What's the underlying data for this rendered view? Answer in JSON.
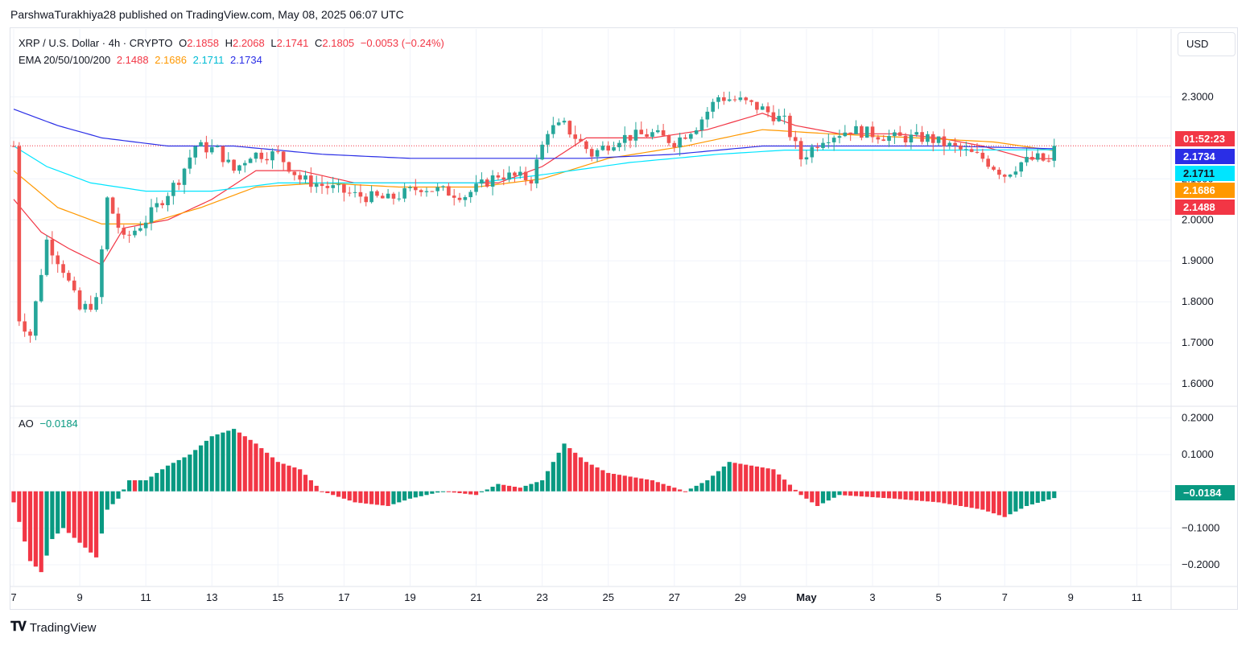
{
  "publisher": "ParshwaTurakhiya28 published on TradingView.com, May 08, 2025 06:07 UTC",
  "symbol": {
    "name": "XRP / U.S. Dollar · 4h · CRYPTO",
    "o_label": "O",
    "o": "2.1858",
    "h_label": "H",
    "h": "2.2068",
    "l_label": "L",
    "l": "2.1741",
    "c_label": "C",
    "c": "2.1805",
    "change": "−0.0053 (−0.24%)"
  },
  "ema": {
    "label": "EMA 20/50/100/200",
    "v20": "2.1488",
    "v50": "2.1686",
    "v100": "2.1711",
    "v200": "2.1734"
  },
  "ao": {
    "label": "AO",
    "value": "−0.0184"
  },
  "currency_button": "USD",
  "price_tags": {
    "countdown": "01:52:23",
    "ema200": "2.1734",
    "ema100": "2.1711",
    "ema50": "2.1686",
    "ema20": "2.1488",
    "ao": "−0.0184"
  },
  "brand": "TradingView",
  "colors": {
    "up": "#26a69a",
    "down": "#ef5350",
    "ema20": "#f23645",
    "ema50": "#ff9800",
    "ema100": "#00e5ff",
    "ema200": "#2a2ee6"
  },
  "chart_data": {
    "type": "candlestick",
    "price_ticks": [
      "2.3000",
      "2.2000",
      "2.1000",
      "2.0000",
      "1.9000",
      "1.8000",
      "1.7000",
      "1.6000"
    ],
    "price_ylim": [
      1.555,
      2.395
    ],
    "ao_ticks": [
      "0.2000",
      "0.1000",
      "0.0000",
      "−0.1000",
      "−0.2000"
    ],
    "ao_ylim": [
      -0.235,
      0.225
    ],
    "x_ticks": [
      {
        "label": "7",
        "t": 0
      },
      {
        "label": "9",
        "t": 12
      },
      {
        "label": "11",
        "t": 24
      },
      {
        "label": "13",
        "t": 36
      },
      {
        "label": "15",
        "t": 48
      },
      {
        "label": "17",
        "t": 60
      },
      {
        "label": "19",
        "t": 72
      },
      {
        "label": "21",
        "t": 84
      },
      {
        "label": "23",
        "t": 96
      },
      {
        "label": "25",
        "t": 108
      },
      {
        "label": "27",
        "t": 120
      },
      {
        "label": "29",
        "t": 132
      },
      {
        "label": "May",
        "t": 144,
        "bold": true
      },
      {
        "label": "3",
        "t": 156
      },
      {
        "label": "5",
        "t": 168
      },
      {
        "label": "7",
        "t": 180
      },
      {
        "label": "9",
        "t": 192
      },
      {
        "label": "11",
        "t": 204
      }
    ],
    "current_price": 2.1805,
    "price_anchors": [
      [
        0,
        2.18
      ],
      [
        1,
        1.76
      ],
      [
        3,
        1.72
      ],
      [
        6,
        1.95
      ],
      [
        9,
        1.88
      ],
      [
        12,
        1.78
      ],
      [
        15,
        1.8
      ],
      [
        17,
        2.05
      ],
      [
        20,
        1.95
      ],
      [
        24,
        2.0
      ],
      [
        27,
        2.05
      ],
      [
        30,
        2.1
      ],
      [
        33,
        2.18
      ],
      [
        37,
        2.17
      ],
      [
        40,
        2.12
      ],
      [
        43,
        2.16
      ],
      [
        48,
        2.16
      ],
      [
        52,
        2.1
      ],
      [
        57,
        2.08
      ],
      [
        62,
        2.06
      ],
      [
        68,
        2.05
      ],
      [
        74,
        2.08
      ],
      [
        82,
        2.06
      ],
      [
        88,
        2.11
      ],
      [
        94,
        2.1
      ],
      [
        97,
        2.22
      ],
      [
        100,
        2.23
      ],
      [
        105,
        2.16
      ],
      [
        110,
        2.2
      ],
      [
        116,
        2.21
      ],
      [
        120,
        2.19
      ],
      [
        124,
        2.23
      ],
      [
        128,
        2.3
      ],
      [
        132,
        2.29
      ],
      [
        136,
        2.27
      ],
      [
        140,
        2.24
      ],
      [
        143,
        2.15
      ],
      [
        147,
        2.2
      ],
      [
        152,
        2.22
      ],
      [
        160,
        2.2
      ],
      [
        166,
        2.2
      ],
      [
        172,
        2.17
      ],
      [
        176,
        2.15
      ],
      [
        180,
        2.11
      ],
      [
        183,
        2.14
      ],
      [
        186,
        2.15
      ],
      [
        188,
        2.14
      ],
      [
        189,
        2.1805
      ]
    ],
    "ema_anchors": {
      "ema20": [
        [
          0,
          2.05
        ],
        [
          5,
          1.97
        ],
        [
          10,
          1.93
        ],
        [
          16,
          1.89
        ],
        [
          20,
          1.98
        ],
        [
          28,
          2.0
        ],
        [
          36,
          2.05
        ],
        [
          44,
          2.12
        ],
        [
          52,
          2.12
        ],
        [
          62,
          2.09
        ],
        [
          76,
          2.09
        ],
        [
          88,
          2.09
        ],
        [
          96,
          2.13
        ],
        [
          104,
          2.2
        ],
        [
          116,
          2.2
        ],
        [
          126,
          2.22
        ],
        [
          136,
          2.26
        ],
        [
          142,
          2.23
        ],
        [
          150,
          2.21
        ],
        [
          160,
          2.21
        ],
        [
          168,
          2.2
        ],
        [
          176,
          2.18
        ],
        [
          184,
          2.15
        ],
        [
          189,
          2.1488
        ]
      ],
      "ema50": [
        [
          0,
          2.12
        ],
        [
          8,
          2.03
        ],
        [
          16,
          1.99
        ],
        [
          24,
          1.99
        ],
        [
          34,
          2.03
        ],
        [
          44,
          2.08
        ],
        [
          56,
          2.09
        ],
        [
          70,
          2.08
        ],
        [
          84,
          2.08
        ],
        [
          96,
          2.1
        ],
        [
          108,
          2.15
        ],
        [
          122,
          2.18
        ],
        [
          136,
          2.22
        ],
        [
          148,
          2.21
        ],
        [
          164,
          2.2
        ],
        [
          178,
          2.19
        ],
        [
          189,
          2.1686
        ]
      ],
      "ema100": [
        [
          0,
          2.18
        ],
        [
          6,
          2.13
        ],
        [
          14,
          2.09
        ],
        [
          24,
          2.07
        ],
        [
          36,
          2.07
        ],
        [
          48,
          2.09
        ],
        [
          60,
          2.09
        ],
        [
          72,
          2.09
        ],
        [
          84,
          2.09
        ],
        [
          96,
          2.11
        ],
        [
          112,
          2.14
        ],
        [
          128,
          2.16
        ],
        [
          140,
          2.17
        ],
        [
          152,
          2.17
        ],
        [
          168,
          2.17
        ],
        [
          189,
          2.1711
        ]
      ],
      "ema200": [
        [
          0,
          2.27
        ],
        [
          8,
          2.23
        ],
        [
          16,
          2.2
        ],
        [
          28,
          2.18
        ],
        [
          40,
          2.18
        ],
        [
          56,
          2.16
        ],
        [
          72,
          2.15
        ],
        [
          88,
          2.15
        ],
        [
          104,
          2.15
        ],
        [
          120,
          2.16
        ],
        [
          136,
          2.18
        ],
        [
          152,
          2.18
        ],
        [
          170,
          2.18
        ],
        [
          189,
          2.1734
        ]
      ]
    },
    "ao_anchors": [
      [
        0,
        -0.03
      ],
      [
        3,
        -0.19
      ],
      [
        5,
        -0.22
      ],
      [
        7,
        -0.13
      ],
      [
        9,
        -0.1
      ],
      [
        12,
        -0.14
      ],
      [
        15,
        -0.18
      ],
      [
        17,
        -0.05
      ],
      [
        19,
        -0.02
      ],
      [
        21,
        0.03
      ],
      [
        24,
        0.03
      ],
      [
        28,
        0.07
      ],
      [
        32,
        0.1
      ],
      [
        36,
        0.15
      ],
      [
        40,
        0.17
      ],
      [
        44,
        0.13
      ],
      [
        48,
        0.08
      ],
      [
        52,
        0.06
      ],
      [
        56,
        0.0
      ],
      [
        62,
        -0.03
      ],
      [
        68,
        -0.04
      ],
      [
        72,
        -0.02
      ],
      [
        78,
        0.0
      ],
      [
        84,
        -0.01
      ],
      [
        88,
        0.02
      ],
      [
        92,
        0.01
      ],
      [
        96,
        0.03
      ],
      [
        100,
        0.13
      ],
      [
        104,
        0.08
      ],
      [
        108,
        0.05
      ],
      [
        116,
        0.03
      ],
      [
        122,
        0.0
      ],
      [
        126,
        0.03
      ],
      [
        130,
        0.08
      ],
      [
        134,
        0.07
      ],
      [
        138,
        0.06
      ],
      [
        143,
        -0.01
      ],
      [
        146,
        -0.04
      ],
      [
        150,
        -0.01
      ],
      [
        160,
        -0.02
      ],
      [
        168,
        -0.03
      ],
      [
        176,
        -0.05
      ],
      [
        180,
        -0.07
      ],
      [
        184,
        -0.04
      ],
      [
        189,
        -0.0184
      ]
    ]
  }
}
